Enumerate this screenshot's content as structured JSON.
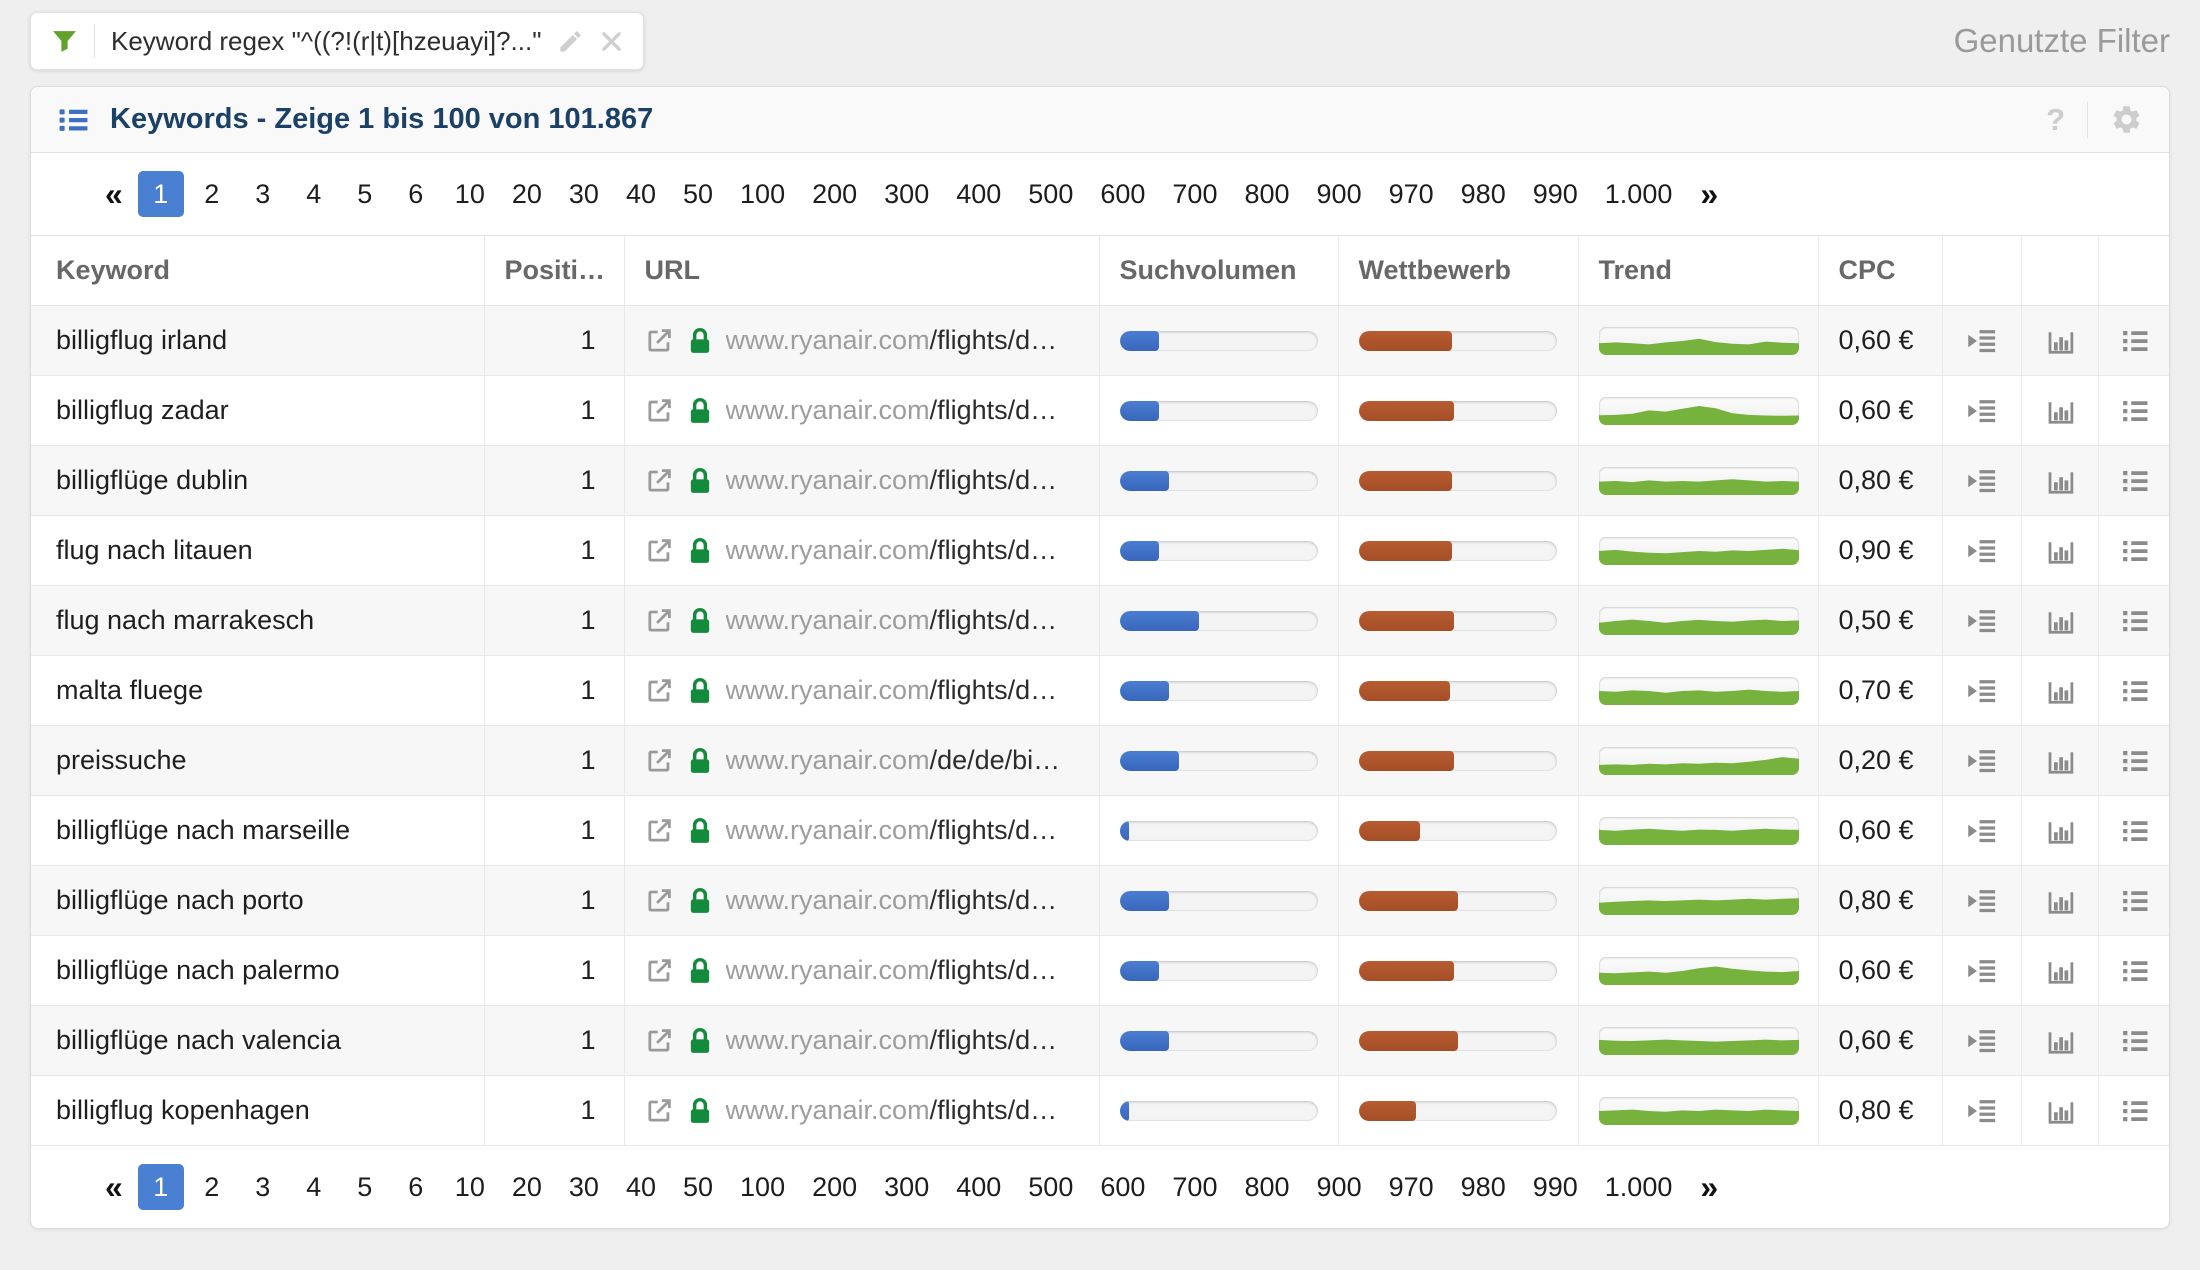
{
  "filter_bar": {
    "chip_text": "Keyword regex \"^((?!(r|t)[hzeuayi]?...\"",
    "used_filters_label": "Genutzte Filter"
  },
  "panel": {
    "title": "Keywords - Zeige 1 bis 100 von 101.867",
    "help_label": "?"
  },
  "pagination": {
    "prev_label": "«",
    "next_label": "»",
    "active_page": "1",
    "pages": [
      "1",
      "2",
      "3",
      "4",
      "5",
      "6",
      "10",
      "20",
      "30",
      "40",
      "50",
      "100",
      "200",
      "300",
      "400",
      "500",
      "600",
      "700",
      "800",
      "900",
      "970",
      "980",
      "990",
      "1.000"
    ]
  },
  "table": {
    "columns": [
      "Keyword",
      "Positi…",
      "URL",
      "Suchvolumen",
      "Wettbewerb",
      "Trend",
      "CPC"
    ],
    "rows": [
      {
        "keyword": "billigflug irland",
        "position": "1",
        "url_domain": "www.ryanair.com",
        "url_path": "/flights/d…",
        "volume_pct": 20,
        "competition_pct": 47,
        "cpc": "0,60 €",
        "trend": [
          0.42,
          0.45,
          0.42,
          0.38,
          0.45,
          0.5,
          0.58,
          0.46,
          0.4,
          0.38,
          0.48,
          0.44,
          0.42
        ]
      },
      {
        "keyword": "billigflug zadar",
        "position": "1",
        "url_domain": "www.ryanair.com",
        "url_path": "/flights/d…",
        "volume_pct": 20,
        "competition_pct": 48,
        "cpc": "0,60 €",
        "trend": [
          0.35,
          0.36,
          0.4,
          0.52,
          0.48,
          0.58,
          0.68,
          0.6,
          0.42,
          0.36,
          0.34,
          0.33,
          0.34
        ]
      },
      {
        "keyword": "billigflüge dublin",
        "position": "1",
        "url_domain": "www.ryanair.com",
        "url_path": "/flights/d…",
        "volume_pct": 25,
        "competition_pct": 47,
        "cpc": "0,80 €",
        "trend": [
          0.48,
          0.5,
          0.46,
          0.52,
          0.48,
          0.5,
          0.48,
          0.52,
          0.56,
          0.52,
          0.48,
          0.5,
          0.48
        ]
      },
      {
        "keyword": "flug nach litauen",
        "position": "1",
        "url_domain": "www.ryanair.com",
        "url_path": "/flights/d…",
        "volume_pct": 20,
        "competition_pct": 47,
        "cpc": "0,90 €",
        "trend": [
          0.5,
          0.54,
          0.48,
          0.44,
          0.42,
          0.46,
          0.5,
          0.47,
          0.52,
          0.5,
          0.54,
          0.58,
          0.53
        ]
      },
      {
        "keyword": "flug nach marrakesch",
        "position": "1",
        "url_domain": "www.ryanair.com",
        "url_path": "/flights/d…",
        "volume_pct": 40,
        "competition_pct": 48,
        "cpc": "0,50 €",
        "trend": [
          0.44,
          0.5,
          0.55,
          0.5,
          0.44,
          0.5,
          0.54,
          0.5,
          0.47,
          0.52,
          0.55,
          0.5,
          0.52
        ]
      },
      {
        "keyword": "malta fluege",
        "position": "1",
        "url_domain": "www.ryanair.com",
        "url_path": "/flights/d…",
        "volume_pct": 25,
        "competition_pct": 46,
        "cpc": "0,70 €",
        "trend": [
          0.5,
          0.47,
          0.52,
          0.5,
          0.44,
          0.5,
          0.52,
          0.47,
          0.5,
          0.55,
          0.5,
          0.47,
          0.5
        ]
      },
      {
        "keyword": "preissuche",
        "position": "1",
        "url_domain": "www.ryanair.com",
        "url_path": "/de/de/bi…",
        "volume_pct": 30,
        "competition_pct": 48,
        "cpc": "0,20 €",
        "trend": [
          0.36,
          0.38,
          0.36,
          0.4,
          0.38,
          0.42,
          0.4,
          0.44,
          0.42,
          0.47,
          0.54,
          0.64,
          0.58
        ]
      },
      {
        "keyword": "billigflüge nach marseille",
        "position": "1",
        "url_domain": "www.ryanair.com",
        "url_path": "/flights/d…",
        "volume_pct": 5,
        "competition_pct": 31,
        "cpc": "0,60 €",
        "trend": [
          0.54,
          0.51,
          0.55,
          0.58,
          0.54,
          0.51,
          0.55,
          0.54,
          0.51,
          0.55,
          0.58,
          0.55,
          0.54
        ]
      },
      {
        "keyword": "billigflüge nach porto",
        "position": "1",
        "url_domain": "www.ryanair.com",
        "url_path": "/flights/d…",
        "volume_pct": 25,
        "competition_pct": 50,
        "cpc": "0,80 €",
        "trend": [
          0.44,
          0.47,
          0.5,
          0.52,
          0.5,
          0.52,
          0.55,
          0.52,
          0.55,
          0.58,
          0.55,
          0.58,
          0.6
        ]
      },
      {
        "keyword": "billigflüge nach palermo",
        "position": "1",
        "url_domain": "www.ryanair.com",
        "url_path": "/flights/d…",
        "volume_pct": 20,
        "competition_pct": 48,
        "cpc": "0,60 €",
        "trend": [
          0.44,
          0.42,
          0.45,
          0.48,
          0.44,
          0.5,
          0.6,
          0.66,
          0.58,
          0.52,
          0.48,
          0.46,
          0.5
        ]
      },
      {
        "keyword": "billigflüge nach valencia",
        "position": "1",
        "url_domain": "www.ryanair.com",
        "url_path": "/flights/d…",
        "volume_pct": 25,
        "competition_pct": 50,
        "cpc": "0,60 €",
        "trend": [
          0.54,
          0.51,
          0.5,
          0.52,
          0.55,
          0.52,
          0.5,
          0.48,
          0.5,
          0.52,
          0.55,
          0.52,
          0.54
        ]
      },
      {
        "keyword": "billigflug kopenhagen",
        "position": "1",
        "url_domain": "www.ryanair.com",
        "url_path": "/flights/d…",
        "volume_pct": 5,
        "competition_pct": 29,
        "cpc": "0,80 €",
        "trend": [
          0.5,
          0.52,
          0.55,
          0.5,
          0.47,
          0.52,
          0.5,
          0.55,
          0.52,
          0.5,
          0.55,
          0.52,
          0.5
        ]
      }
    ]
  },
  "colors": {
    "accent_blue": "#4a80d1",
    "volume_bar_blue": "#3f72c8",
    "competition_bar_orange": "#ad5329",
    "trend_green": "#77b23f",
    "lock_green": "#148a3d",
    "funnel_green": "#61a32a",
    "title_navy": "#1c4166"
  }
}
